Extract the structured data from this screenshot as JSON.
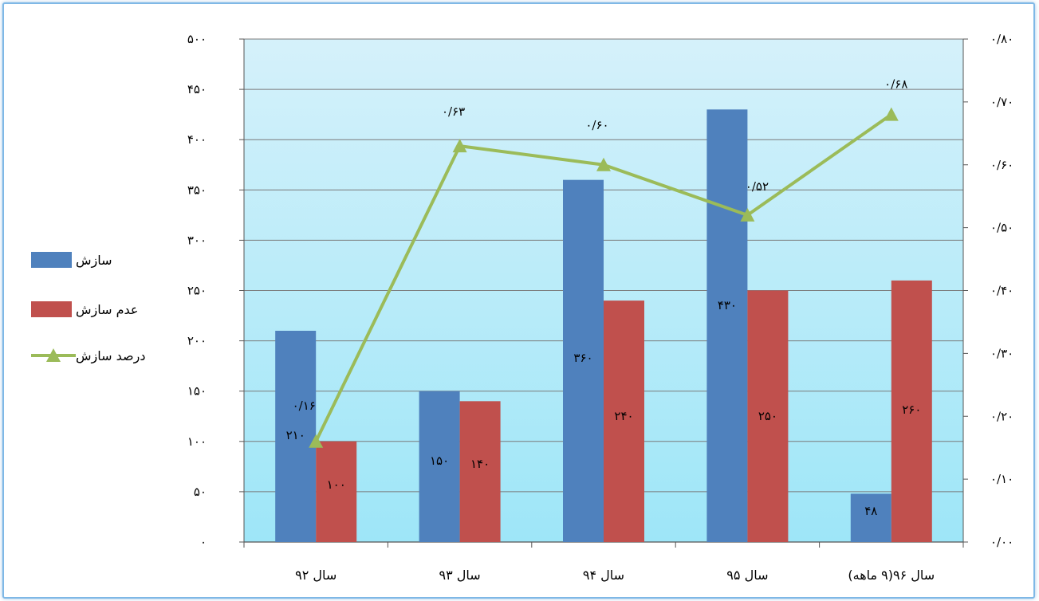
{
  "chart_data": {
    "type": "bar",
    "categories": [
      "سال ۹۲",
      "سال ۹۳",
      "سال ۹۴",
      "سال ۹۵",
      "سال ۹۶(۹ ماهه)"
    ],
    "series": [
      {
        "name": "سازش",
        "kind": "bar",
        "axis": "left",
        "color": "#4f81bd",
        "values": [
          210,
          150,
          360,
          430,
          48
        ],
        "labels": [
          "۲۱۰",
          "۱۵۰",
          "۳۶۰",
          "۴۳۰",
          "۴۸"
        ]
      },
      {
        "name": "عدم سازش",
        "kind": "bar",
        "axis": "left",
        "color": "#c0504d",
        "values": [
          100,
          140,
          240,
          250,
          260
        ],
        "labels": [
          "۱۰۰",
          "۱۴۰",
          "۲۴۰",
          "۲۵۰",
          "۲۶۰"
        ]
      },
      {
        "name": "درصد سازش",
        "kind": "line",
        "axis": "right",
        "color": "#9bbb59",
        "values": [
          0.16,
          0.63,
          0.6,
          0.52,
          0.68
        ],
        "labels": [
          "۰/۱۶",
          "۰/۶۳",
          "۰/۶۰",
          "۰/۵۲",
          "۰/۶۸"
        ]
      }
    ],
    "y_left": {
      "range": [
        0,
        500
      ],
      "tick_values": [
        0,
        50,
        100,
        150,
        200,
        250,
        300,
        350,
        400,
        450,
        500
      ],
      "tick_labels": [
        "۰",
        "۵۰",
        "۱۰۰",
        "۱۵۰",
        "۲۰۰",
        "۲۵۰",
        "۳۰۰",
        "۳۵۰",
        "۴۰۰",
        "۴۵۰",
        "۵۰۰"
      ]
    },
    "y_right": {
      "range": [
        0,
        0.8
      ],
      "tick_values": [
        0,
        0.1,
        0.2,
        0.3,
        0.4,
        0.5,
        0.6,
        0.7,
        0.8
      ],
      "tick_labels": [
        "۰/۰۰",
        "۰/۱۰",
        "۰/۲۰",
        "۰/۳۰",
        "۰/۴۰",
        "۰/۵۰",
        "۰/۶۰",
        "۰/۷۰",
        "۰/۸۰"
      ]
    },
    "grid": true,
    "legend_position": "left",
    "colors": {
      "plot_top": "#d5f1fa",
      "plot_bottom": "#9ee6f8",
      "grid": "#7a7a7a"
    }
  }
}
